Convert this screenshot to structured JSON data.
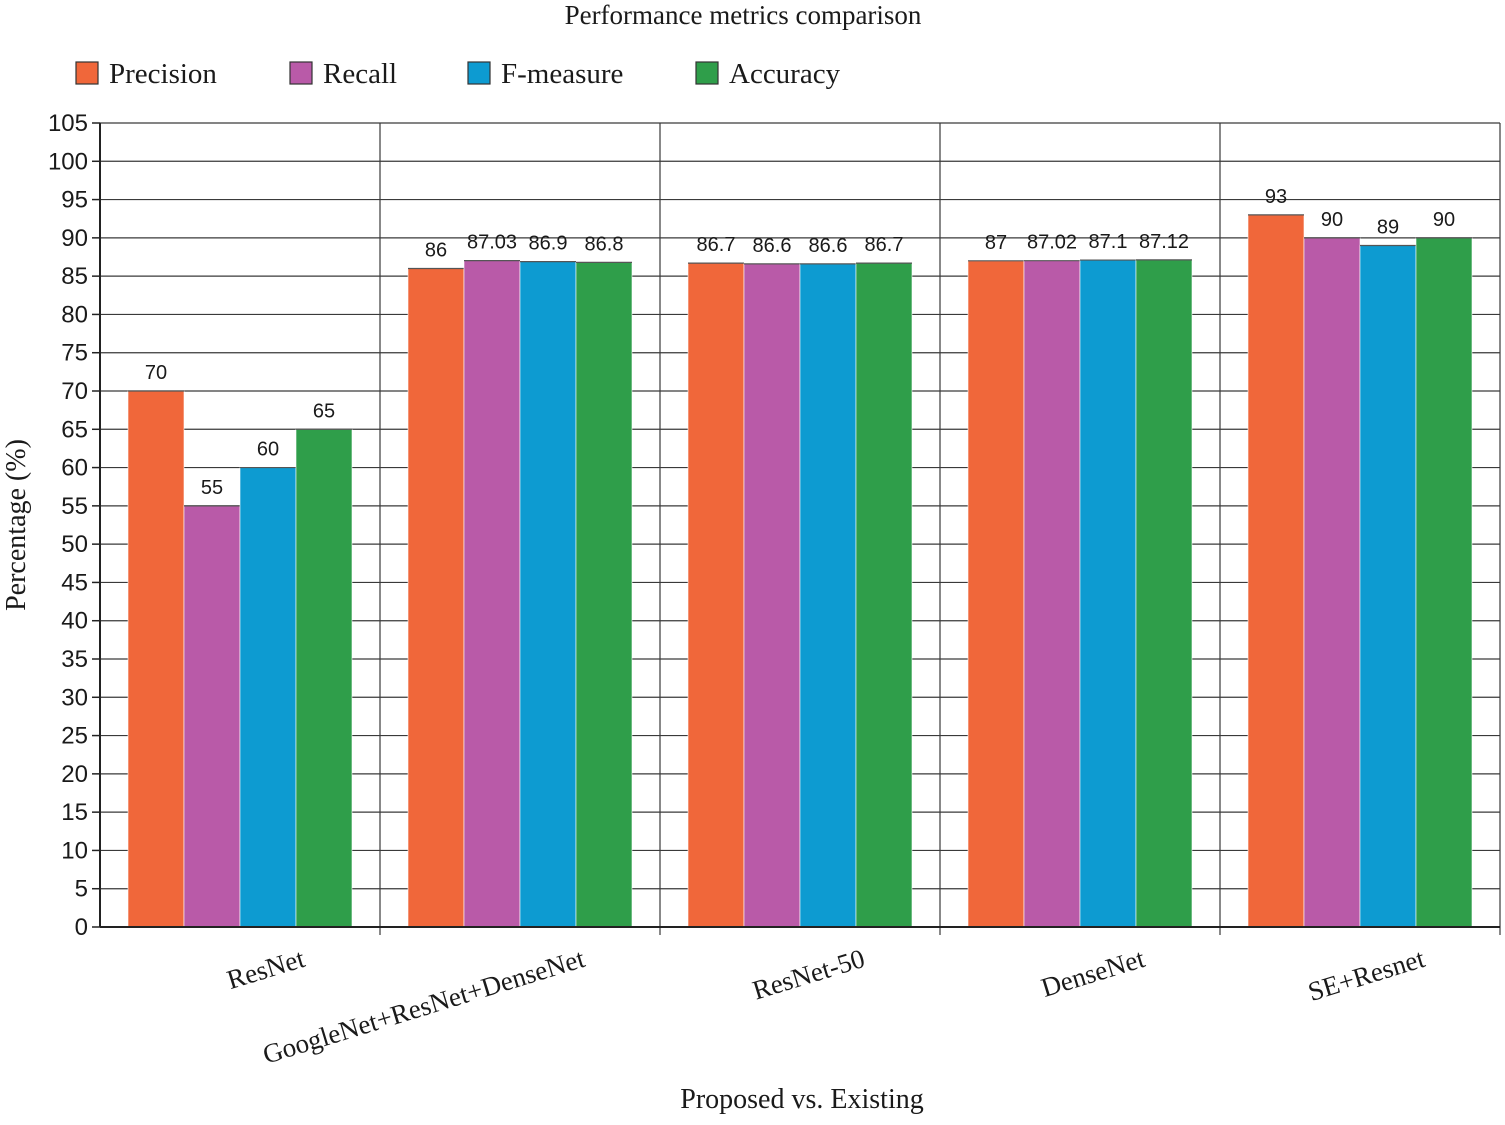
{
  "chart_data": {
    "type": "bar",
    "title": "Performance metrics comparison",
    "xlabel": "Proposed vs. Existing",
    "ylabel": "Percentage (%)",
    "ylim": [
      0,
      105
    ],
    "yticks": [
      0,
      5,
      10,
      15,
      20,
      25,
      30,
      35,
      40,
      45,
      50,
      55,
      60,
      65,
      70,
      75,
      80,
      85,
      90,
      95,
      100,
      105
    ],
    "grid": true,
    "legend_position": "top",
    "categories": [
      "ResNet",
      "GoogleNet+ResNet+DenseNet",
      "ResNet-50",
      "DenseNet",
      "SE+Resnet"
    ],
    "series": [
      {
        "name": "Precision",
        "color": "#f0673a",
        "values": [
          70,
          86,
          86.7,
          87,
          93
        ],
        "labels": [
          "70",
          "86",
          "86.7",
          "87",
          "93"
        ]
      },
      {
        "name": "Recall",
        "color": "#b95aa8",
        "values": [
          55,
          87.03,
          86.6,
          87.02,
          90
        ],
        "labels": [
          "55",
          "87.03",
          "86.6",
          "87.02",
          "90"
        ]
      },
      {
        "name": "F-measure",
        "color": "#0d9bd1",
        "values": [
          60,
          86.9,
          86.6,
          87.1,
          89
        ],
        "labels": [
          "60",
          "86.9",
          "86.6",
          "87.1",
          "89"
        ]
      },
      {
        "name": "Accuracy",
        "color": "#2f9e4a",
        "values": [
          65,
          86.8,
          86.7,
          87.12,
          90
        ],
        "labels": [
          "65",
          "86.8",
          "86.7",
          "87.12",
          "90"
        ]
      }
    ]
  }
}
